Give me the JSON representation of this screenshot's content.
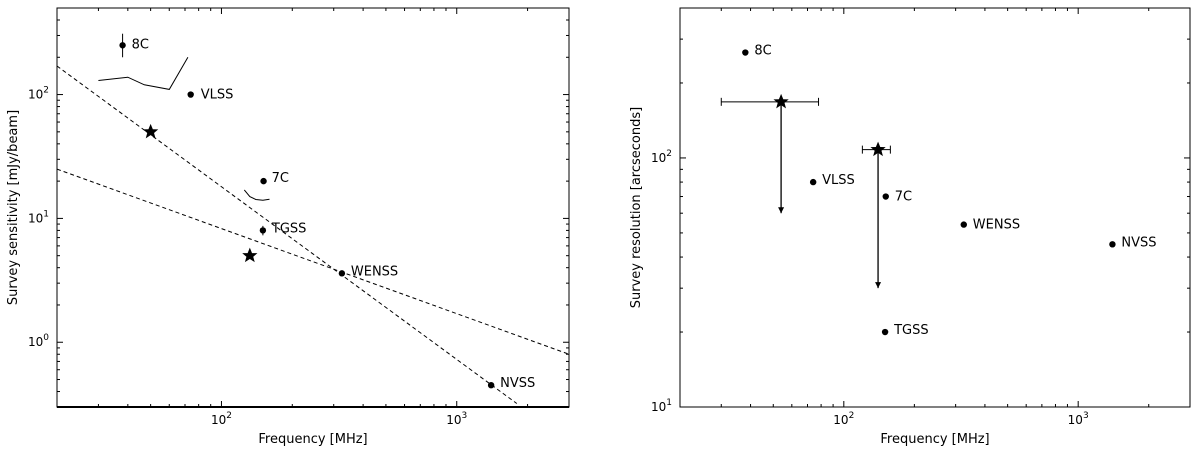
{
  "chart_data": [
    {
      "type": "scatter",
      "xlabel": "Frequency [MHz]",
      "ylabel": "Survey sensitivity [mJy/beam]",
      "xscale": "log",
      "yscale": "log",
      "xlim": [
        20,
        3000
      ],
      "ylim": [
        0.3,
        500
      ],
      "x_ticks": [
        100,
        1000
      ],
      "x_tick_labels": [
        {
          "base": "10",
          "exp": "2"
        },
        {
          "base": "10",
          "exp": "3"
        }
      ],
      "y_ticks": [
        1,
        10,
        100
      ],
      "y_tick_labels": [
        {
          "base": "10",
          "exp": "0"
        },
        {
          "base": "10",
          "exp": "1"
        },
        {
          "base": "10",
          "exp": "2"
        }
      ],
      "points": [
        {
          "label": "8C",
          "x": 38,
          "y": 250,
          "yerr": [
            200,
            310
          ]
        },
        {
          "label": "VLSS",
          "x": 74,
          "y": 100
        },
        {
          "label": "7C",
          "x": 151,
          "y": 20
        },
        {
          "label": "TGSS",
          "x": 150,
          "y": 8,
          "yerr": [
            7.3,
            8.7
          ]
        },
        {
          "label": "WENSS",
          "x": 325,
          "y": 3.6
        },
        {
          "label": "NVSS",
          "x": 1400,
          "y": 0.45
        }
      ],
      "stars": [
        {
          "x": 50,
          "y": 50
        },
        {
          "x": 132,
          "y": 5
        }
      ],
      "dashed_lines": [
        {
          "x": [
            20,
            1800
          ],
          "y": [
            170,
            0.32
          ]
        },
        {
          "x": [
            20,
            3000
          ],
          "y": [
            25,
            0.8
          ]
        }
      ],
      "curves": [
        {
          "x": [
            30,
            40,
            47,
            60,
            72
          ],
          "y": [
            130,
            138,
            120,
            110,
            200
          ]
        },
        {
          "x": [
            125,
            132,
            140,
            150,
            160
          ],
          "y": [
            17,
            15,
            14.2,
            14,
            14.3
          ]
        }
      ]
    },
    {
      "type": "scatter",
      "xlabel": "Frequency [MHz]",
      "ylabel": "Survey resolution [arcseconds]",
      "xscale": "log",
      "yscale": "log",
      "xlim": [
        20,
        3000
      ],
      "ylim": [
        10,
        400
      ],
      "x_ticks": [
        100,
        1000
      ],
      "x_tick_labels": [
        {
          "base": "10",
          "exp": "2"
        },
        {
          "base": "10",
          "exp": "3"
        }
      ],
      "y_ticks": [
        10,
        100
      ],
      "y_tick_labels": [
        {
          "base": "10",
          "exp": "1"
        },
        {
          "base": "10",
          "exp": "2"
        }
      ],
      "points": [
        {
          "label": "8C",
          "x": 38,
          "y": 265
        },
        {
          "label": "VLSS",
          "x": 74,
          "y": 80
        },
        {
          "label": "7C",
          "x": 151,
          "y": 70
        },
        {
          "label": "TGSS",
          "x": 150,
          "y": 20
        },
        {
          "label": "WENSS",
          "x": 325,
          "y": 54
        },
        {
          "label": "NVSS",
          "x": 1400,
          "y": 45
        }
      ],
      "stars": [
        {
          "x": 54,
          "y": 168,
          "xerr": [
            30,
            78
          ],
          "arrow_to": 60
        },
        {
          "x": 140,
          "y": 108,
          "xerr": [
            120,
            158
          ],
          "arrow_to": 30
        }
      ]
    }
  ]
}
